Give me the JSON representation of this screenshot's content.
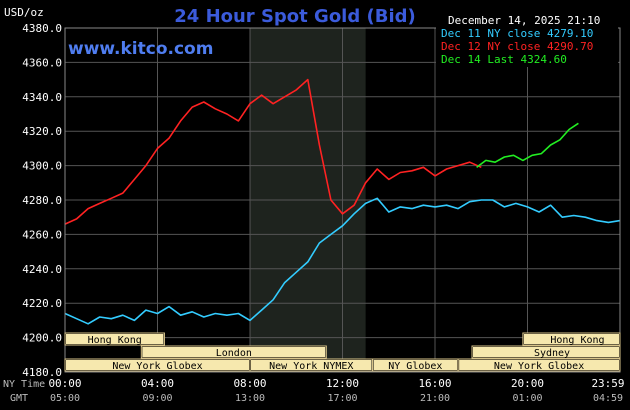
{
  "chart_data": {
    "type": "line",
    "title": "24 Hour Spot Gold (Bid)",
    "watermark": "www.kitco.com",
    "timestamp": "December 14, 2025 21:10",
    "ylabel": "USD/oz",
    "ylim": [
      4180,
      4380
    ],
    "yticks": [
      "4380.0",
      "4360.0",
      "4340.0",
      "4320.0",
      "4300.0",
      "4280.0",
      "4260.0",
      "4240.0",
      "4220.0",
      "4200.0",
      "4180.0"
    ],
    "xaxis_rows": [
      {
        "label": "NY Time",
        "ticks": [
          "00:00",
          "04:00",
          "08:00",
          "12:00",
          "16:00",
          "20:00",
          "23:59"
        ]
      },
      {
        "label": "GMT",
        "ticks": [
          "05:00",
          "09:00",
          "13:00",
          "17:00",
          "21:00",
          "01:00",
          "04:59"
        ]
      }
    ],
    "xlim_hours": [
      0,
      24
    ],
    "shaded_region_hours": [
      8,
      13
    ],
    "legend_placement": "top-right",
    "legend": [
      {
        "text": "Dec 11 NY close 4279.10",
        "color": "#33ccff"
      },
      {
        "text": "Dec 12 NY close 4290.70",
        "color": "#ff2222"
      },
      {
        "text": "Dec 14 Last 4324.60",
        "color": "#22ee22"
      }
    ],
    "sessions": [
      {
        "name": "Hong Kong",
        "start": 0,
        "end": 4.3
      },
      {
        "name": "London",
        "start": 3.3,
        "end": 11.3
      },
      {
        "name": "New York Globex",
        "start": 0,
        "end": 8
      },
      {
        "name": "New York NYMEX",
        "start": 8,
        "end": 13.3
      },
      {
        "name": "NY Globex",
        "start": 13.3,
        "end": 17
      },
      {
        "name": "Hong Kong",
        "start": 19.8,
        "end": 24
      },
      {
        "name": "Sydney",
        "start": 17.6,
        "end": 24
      },
      {
        "name": "New York Globex",
        "start": 17,
        "end": 24
      }
    ],
    "series": [
      {
        "name": "Dec 11",
        "color": "#33ccff",
        "x": [
          0,
          0.5,
          1,
          1.5,
          2,
          2.5,
          3,
          3.5,
          4,
          4.5,
          5,
          5.5,
          6,
          6.5,
          7,
          7.5,
          8,
          8.5,
          9,
          9.5,
          10,
          10.5,
          11,
          11.5,
          12,
          12.5,
          13,
          13.5,
          14,
          14.5,
          15,
          15.5,
          16,
          16.5,
          17,
          17.5,
          18,
          18.5,
          19,
          19.5,
          20,
          20.5,
          21,
          21.5,
          22,
          22.5,
          23,
          23.5,
          24
        ],
        "y": [
          4214,
          4211,
          4208,
          4212,
          4211,
          4213,
          4210,
          4216,
          4214,
          4218,
          4213,
          4215,
          4212,
          4214,
          4213,
          4214,
          4210,
          4216,
          4222,
          4232,
          4238,
          4244,
          4255,
          4260,
          4265,
          4272,
          4278,
          4281,
          4273,
          4276,
          4275,
          4277,
          4276,
          4277,
          4275,
          4279,
          4280,
          4280,
          4276,
          4278,
          4276,
          4273,
          4277,
          4270,
          4271,
          4270,
          4268,
          4267,
          4268
        ]
      },
      {
        "name": "Dec 12",
        "color": "#ff2222",
        "x": [
          0,
          0.5,
          1,
          1.5,
          2,
          2.5,
          3,
          3.5,
          4,
          4.5,
          5,
          5.5,
          6,
          6.5,
          7,
          7.5,
          8,
          8.5,
          9,
          9.5,
          10,
          10.5,
          11,
          11.5,
          12,
          12.5,
          13,
          13.5,
          14,
          14.5,
          15,
          15.5,
          16,
          16.5,
          17,
          17.5,
          18
        ],
        "y": [
          4266,
          4269,
          4275,
          4278,
          4281,
          4284,
          4292,
          4300,
          4310,
          4316,
          4326,
          4334,
          4337,
          4333,
          4330,
          4326,
          4336,
          4341,
          4336,
          4340,
          4344,
          4350,
          4312,
          4280,
          4272,
          4277,
          4290,
          4298,
          4292,
          4296,
          4297,
          4299,
          4294,
          4298,
          4300,
          4302,
          4299
        ]
      },
      {
        "name": "Dec 14",
        "color": "#22ee22",
        "x": [
          17.8,
          18.2,
          18.6,
          19,
          19.4,
          19.8,
          20.2,
          20.6,
          21,
          21.4,
          21.8,
          22.2
        ],
        "y": [
          4299,
          4303,
          4302,
          4305,
          4306,
          4303,
          4306,
          4307,
          4312,
          4315,
          4321,
          4324.6
        ]
      }
    ]
  }
}
